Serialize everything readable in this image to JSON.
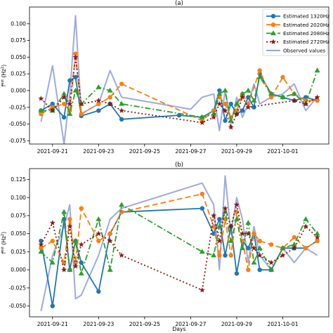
{
  "chart_data": [
    {
      "type": "line",
      "title": "(a)",
      "ylabel": "f^{est} (Hz^2)",
      "xlabel": "",
      "xlim": [
        "2021-09-20",
        "2021-10-03"
      ],
      "ylim": [
        -0.08,
        0.125
      ],
      "y_ticks": [
        0.1,
        0.075,
        0.05,
        0.025,
        0.0,
        -0.025,
        -0.05,
        -0.075
      ],
      "y_tick_labels": [
        "0.100",
        "0.075",
        "0.050",
        "0.025",
        "0.000",
        "-0.025",
        "-0.050",
        "-0.075"
      ],
      "x_ticks": [
        "2021-09-21",
        "2021-09-23",
        "2021-09-25",
        "2021-09-27",
        "2021-09-29",
        "2021-10-01"
      ],
      "x_tick_labels": [
        "2021-09-21",
        "2021-09-23",
        "2021-09-25",
        "2021-09-27",
        "2021-09-29",
        "2021-10-01"
      ],
      "legend_position": "top-right",
      "grid": false,
      "series": [
        {
          "name": "Estimated 1320Hz",
          "color": "#1f77b4",
          "dash": "solid",
          "marker": "circle",
          "x": [
            "2021-09-20 12:00",
            "2021-09-21 00:00",
            "2021-09-21 12:00",
            "2021-09-21 18:00",
            "2021-09-22 00:00",
            "2021-09-22 06:00",
            "2021-09-23 00:00",
            "2021-09-23 12:00",
            "2021-09-24 00:00",
            "2021-09-26 12:00",
            "2021-09-27 12:00",
            "2021-09-28 00:00",
            "2021-09-28 06:00",
            "2021-09-28 12:00",
            "2021-09-28 18:00",
            "2021-09-29 00:00",
            "2021-09-29 06:00",
            "2021-09-29 12:00",
            "2021-09-29 18:00",
            "2021-09-30 00:00",
            "2021-09-30 12:00",
            "2021-10-01 00:00",
            "2021-10-01 12:00",
            "2021-10-02 00:00",
            "2021-10-02 12:00"
          ],
          "y": [
            -0.03,
            -0.02,
            -0.04,
            0.015,
            0.02,
            -0.038,
            -0.03,
            -0.02,
            -0.043,
            -0.037,
            -0.04,
            -0.03,
            0.0,
            -0.045,
            -0.02,
            -0.035,
            -0.03,
            -0.01,
            -0.025,
            0.025,
            -0.005,
            -0.01,
            -0.015,
            -0.01,
            -0.015
          ]
        },
        {
          "name": "Estimated 2020Hz",
          "color": "#ff7f0e",
          "dash": "8,4",
          "marker": "circle",
          "x": [
            "2021-09-20 12:00",
            "2021-09-21 00:00",
            "2021-09-21 12:00",
            "2021-09-21 18:00",
            "2021-09-22 00:00",
            "2021-09-22 06:00",
            "2021-09-23 00:00",
            "2021-09-23 12:00",
            "2021-09-24 00:00",
            "2021-09-27 12:00",
            "2021-09-28 00:00",
            "2021-09-28 06:00",
            "2021-09-28 12:00",
            "2021-09-28 18:00",
            "2021-09-29 00:00",
            "2021-09-29 06:00",
            "2021-09-29 12:00",
            "2021-09-30 00:00",
            "2021-09-30 12:00",
            "2021-10-01 00:00",
            "2021-10-01 12:00",
            "2021-10-02 00:00",
            "2021-10-02 12:00"
          ],
          "y": [
            -0.035,
            -0.025,
            -0.02,
            -0.03,
            0.055,
            -0.035,
            -0.02,
            -0.01,
            0.01,
            -0.045,
            -0.03,
            -0.01,
            -0.02,
            -0.04,
            -0.03,
            -0.005,
            -0.02,
            0.03,
            -0.01,
            0.02,
            -0.005,
            -0.015,
            -0.015
          ]
        },
        {
          "name": "Estimated 2080Hz",
          "color": "#2ca02c",
          "dash": "8,3,2,3",
          "marker": "triangle",
          "x": [
            "2021-09-20 12:00",
            "2021-09-21 00:00",
            "2021-09-21 12:00",
            "2021-09-21 18:00",
            "2021-09-22 00:00",
            "2021-09-22 06:00",
            "2021-09-23 00:00",
            "2021-09-23 12:00",
            "2021-09-24 00:00",
            "2021-09-27 12:00",
            "2021-09-28 00:00",
            "2021-09-28 06:00",
            "2021-09-28 12:00",
            "2021-09-28 18:00",
            "2021-09-29 00:00",
            "2021-09-29 06:00",
            "2021-09-29 12:00",
            "2021-09-29 18:00",
            "2021-09-30 00:00",
            "2021-09-30 12:00",
            "2021-10-01 00:00",
            "2021-10-01 12:00",
            "2021-10-02 00:00",
            "2021-10-02 12:00"
          ],
          "y": [
            -0.03,
            -0.03,
            -0.005,
            -0.035,
            0.0,
            -0.02,
            0.005,
            0.0,
            -0.02,
            -0.04,
            -0.035,
            -0.005,
            0.0,
            -0.045,
            -0.02,
            -0.005,
            0.0,
            -0.015,
            0.02,
            -0.005,
            -0.01,
            -0.005,
            -0.02,
            0.03
          ]
        },
        {
          "name": "Estimated 2720Hz",
          "color": "#8b1a1a",
          "dash": "2,3",
          "marker": "star",
          "x": [
            "2021-09-20 12:00",
            "2021-09-21 00:00",
            "2021-09-21 12:00",
            "2021-09-21 18:00",
            "2021-09-22 00:00",
            "2021-09-22 06:00",
            "2021-09-23 00:00",
            "2021-09-23 12:00",
            "2021-09-24 00:00",
            "2021-09-27 12:00",
            "2021-09-28 00:00",
            "2021-09-28 06:00",
            "2021-09-28 12:00",
            "2021-09-28 18:00",
            "2021-09-29 00:00",
            "2021-09-29 06:00",
            "2021-09-29 12:00",
            "2021-10-01 12:00",
            "2021-10-02 00:00",
            "2021-10-02 12:00"
          ],
          "y": [
            -0.012,
            -0.03,
            -0.01,
            -0.02,
            0.05,
            -0.02,
            -0.015,
            -0.02,
            -0.03,
            -0.048,
            -0.04,
            -0.02,
            -0.03,
            -0.055,
            -0.035,
            -0.01,
            -0.025,
            -0.015,
            -0.02,
            -0.01
          ]
        },
        {
          "name": "Observed values",
          "color": "#8c9bdc",
          "dash": "solid",
          "marker": "none",
          "x": [
            "2021-09-20 12:00",
            "2021-09-21 00:00",
            "2021-09-21 12:00",
            "2021-09-21 18:00",
            "2021-09-22 00:00",
            "2021-09-22 06:00",
            "2021-09-23 00:00",
            "2021-09-23 12:00",
            "2021-09-24 00:00",
            "2021-09-27 00:00",
            "2021-09-27 12:00",
            "2021-09-28 00:00",
            "2021-09-28 06:00",
            "2021-09-28 12:00",
            "2021-09-28 18:00",
            "2021-09-29 00:00",
            "2021-09-29 06:00",
            "2021-09-29 12:00",
            "2021-09-29 18:00",
            "2021-09-30 00:00",
            "2021-09-30 12:00",
            "2021-10-01 00:00",
            "2021-10-01 12:00",
            "2021-10-02 00:00",
            "2021-10-02 12:00"
          ],
          "y": [
            -0.047,
            0.037,
            -0.08,
            -0.005,
            0.112,
            -0.035,
            -0.02,
            0.03,
            -0.01,
            -0.028,
            -0.01,
            -0.005,
            -0.06,
            0.0,
            -0.05,
            -0.01,
            -0.04,
            -0.02,
            0.01,
            -0.02,
            -0.01,
            -0.005,
            0.01,
            -0.03,
            -0.01
          ]
        }
      ]
    },
    {
      "type": "line",
      "title": "(b)",
      "ylabel": "f^{est} (Hz^2)",
      "xlabel": "Days",
      "xlim": [
        "2021-09-20",
        "2021-10-03"
      ],
      "ylim": [
        -0.065,
        0.14
      ],
      "y_ticks": [
        0.125,
        0.1,
        0.075,
        0.05,
        0.025,
        0.0,
        -0.025,
        -0.05
      ],
      "y_tick_labels": [
        "0.125",
        "0.100",
        "0.075",
        "0.050",
        "0.025",
        "0.000",
        "-0.025",
        "-0.050"
      ],
      "x_ticks": [
        "2021-09-21",
        "2021-09-23",
        "2021-09-25",
        "2021-09-27",
        "2021-09-29",
        "2021-10-01"
      ],
      "x_tick_labels": [
        "2021-09-21",
        "2021-09-23",
        "2021-09-25",
        "2021-09-27",
        "2021-09-29",
        "2021-10-01"
      ],
      "grid": false,
      "series": [
        {
          "name": "Estimated 1320Hz",
          "color": "#1f77b4",
          "dash": "solid",
          "marker": "circle",
          "x": [
            "2021-09-20 12:00",
            "2021-09-21 00:00",
            "2021-09-21 12:00",
            "2021-09-21 18:00",
            "2021-09-22 00:00",
            "2021-09-22 06:00",
            "2021-09-23 00:00",
            "2021-09-23 12:00",
            "2021-09-24 00:00",
            "2021-09-27 12:00",
            "2021-09-28 00:00",
            "2021-09-28 06:00",
            "2021-09-28 12:00",
            "2021-09-28 18:00",
            "2021-09-29 00:00",
            "2021-09-29 06:00",
            "2021-09-29 12:00",
            "2021-09-29 18:00",
            "2021-09-30 00:00",
            "2021-09-30 12:00",
            "2021-10-01 00:00",
            "2021-10-01 12:00",
            "2021-10-02 00:00",
            "2021-10-02 12:00"
          ],
          "y": [
            0.04,
            -0.05,
            0.07,
            0.0,
            0.04,
            0.01,
            -0.03,
            0.05,
            0.08,
            0.085,
            0.05,
            0.07,
            0.02,
            0.06,
            -0.005,
            0.04,
            0.03,
            0.05,
            0.0,
            0.0,
            0.03,
            0.03,
            0.03,
            0.04
          ]
        },
        {
          "name": "Estimated 2020Hz",
          "color": "#ff7f0e",
          "dash": "8,4",
          "marker": "circle",
          "x": [
            "2021-09-20 12:00",
            "2021-09-21 00:00",
            "2021-09-21 12:00",
            "2021-09-21 18:00",
            "2021-09-22 00:00",
            "2021-09-22 06:00",
            "2021-09-23 00:00",
            "2021-09-23 12:00",
            "2021-09-24 00:00",
            "2021-09-27 12:00",
            "2021-09-28 00:00",
            "2021-09-28 06:00",
            "2021-09-28 12:00",
            "2021-09-28 18:00",
            "2021-09-29 00:00",
            "2021-09-29 06:00",
            "2021-09-29 12:00",
            "2021-09-29 18:00",
            "2021-09-30 00:00",
            "2021-09-30 12:00",
            "2021-10-01 00:00",
            "2021-10-01 12:00",
            "2021-10-02 00:00",
            "2021-10-02 12:00"
          ],
          "y": [
            0.03,
            0.04,
            0.01,
            0.07,
            0.01,
            0.085,
            0.04,
            0.05,
            0.08,
            0.105,
            0.06,
            0.02,
            0.07,
            0.02,
            0.08,
            0.04,
            0.0,
            0.05,
            0.04,
            0.035,
            0.03,
            0.045,
            0.03,
            0.04
          ]
        },
        {
          "name": "Estimated 2080Hz",
          "color": "#2ca02c",
          "dash": "8,3,2,3",
          "marker": "triangle",
          "x": [
            "2021-09-20 12:00",
            "2021-09-21 00:00",
            "2021-09-21 12:00",
            "2021-09-21 18:00",
            "2021-09-22 00:00",
            "2021-09-22 06:00",
            "2021-09-23 00:00",
            "2021-09-23 12:00",
            "2021-09-24 00:00",
            "2021-09-27 12:00",
            "2021-09-28 00:00",
            "2021-09-28 06:00",
            "2021-09-28 12:00",
            "2021-09-28 18:00",
            "2021-09-29 00:00",
            "2021-09-29 06:00",
            "2021-09-29 12:00",
            "2021-09-29 18:00",
            "2021-09-30 00:00",
            "2021-09-30 12:00",
            "2021-10-01 00:00",
            "2021-10-01 12:00",
            "2021-10-02 00:00",
            "2021-10-02 12:00"
          ],
          "y": [
            0.025,
            0.01,
            0.08,
            0.0,
            0.04,
            -0.005,
            0.07,
            0.0,
            0.09,
            0.025,
            0.02,
            0.06,
            0.08,
            0.04,
            0.07,
            0.03,
            0.065,
            0.01,
            0.03,
            0.0,
            0.03,
            0.035,
            0.07,
            0.05
          ]
        },
        {
          "name": "Estimated 2720Hz",
          "color": "#8b1a1a",
          "dash": "2,3",
          "marker": "star",
          "x": [
            "2021-09-20 12:00",
            "2021-09-21 00:00",
            "2021-09-21 12:00",
            "2021-09-21 18:00",
            "2021-09-22 00:00",
            "2021-09-22 06:00",
            "2021-09-23 00:00",
            "2021-09-23 12:00",
            "2021-09-24 00:00",
            "2021-09-27 12:00",
            "2021-09-28 00:00",
            "2021-09-28 06:00",
            "2021-09-28 12:00",
            "2021-09-28 18:00",
            "2021-09-29 00:00",
            "2021-09-29 06:00",
            "2021-09-29 12:00",
            "2021-09-29 18:00",
            "2021-09-30 00:00",
            "2021-09-30 12:00",
            "2021-10-01 00:00",
            "2021-10-01 12:00",
            "2021-10-02 00:00",
            "2021-10-02 12:00"
          ],
          "y": [
            0.035,
            0.065,
            0.0,
            0.06,
            0.005,
            0.035,
            0.05,
            0.04,
            0.02,
            -0.028,
            0.075,
            0.04,
            0.085,
            0.06,
            0.09,
            0.05,
            0.05,
            0.03,
            0.02,
            0.01,
            0.02,
            0.03,
            0.06,
            0.045
          ]
        },
        {
          "name": "Observed values",
          "color": "#8c9bdc",
          "dash": "solid",
          "marker": "none",
          "x": [
            "2021-09-20 12:00",
            "2021-09-21 00:00",
            "2021-09-21 12:00",
            "2021-09-21 18:00",
            "2021-09-22 00:00",
            "2021-09-22 06:00",
            "2021-09-23 00:00",
            "2021-09-23 12:00",
            "2021-09-24 00:00",
            "2021-09-27 12:00",
            "2021-09-28 00:00",
            "2021-09-28 06:00",
            "2021-09-28 12:00",
            "2021-09-28 18:00",
            "2021-09-29 00:00",
            "2021-09-29 06:00",
            "2021-09-29 12:00",
            "2021-09-29 18:00",
            "2021-09-30 00:00",
            "2021-09-30 12:00",
            "2021-10-01 00:00",
            "2021-10-01 12:00",
            "2021-10-02 00:00",
            "2021-10-02 12:00"
          ],
          "y": [
            -0.057,
            0.02,
            0.06,
            0.09,
            -0.04,
            -0.035,
            0.02,
            0.07,
            0.085,
            0.12,
            0.09,
            0.0,
            0.13,
            0.05,
            0.1,
            0.07,
            0.01,
            0.06,
            0.02,
            0.0,
            0.03,
            0.01,
            0.03,
            0.02
          ]
        }
      ]
    }
  ]
}
